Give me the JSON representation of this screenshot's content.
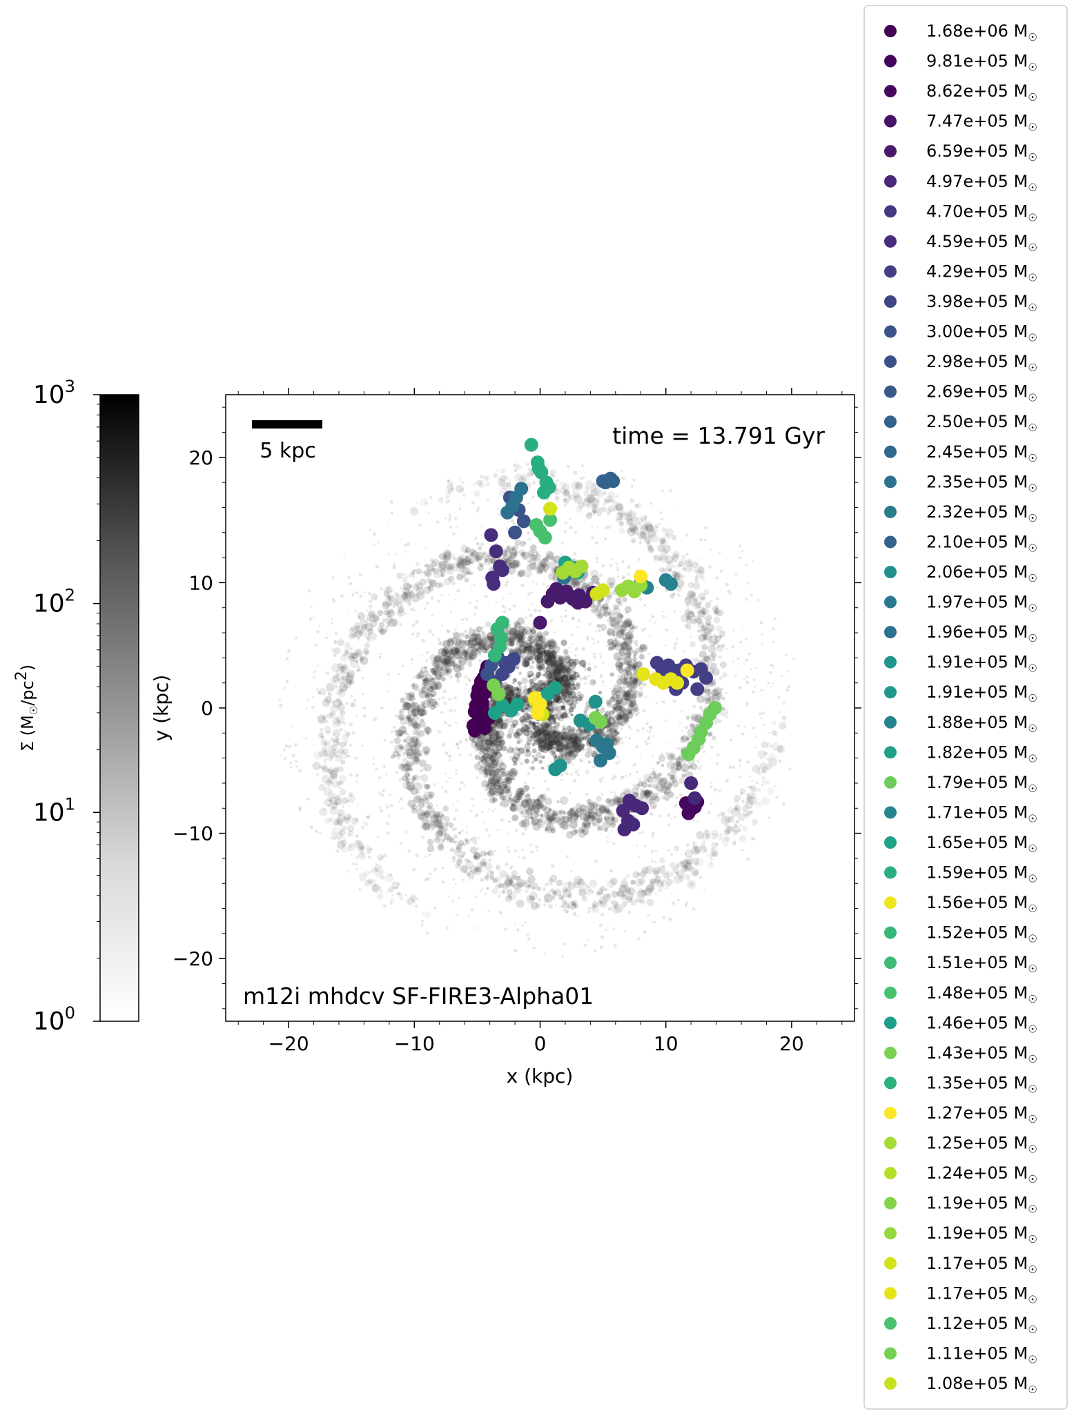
{
  "chart_data": {
    "type": "scatter",
    "title": "",
    "xlabel": "x (kpc)",
    "ylabel": "y (kpc)",
    "xlim": [
      -25,
      25
    ],
    "ylim": [
      -25,
      25
    ],
    "xticks": [
      -20,
      -10,
      0,
      10,
      20
    ],
    "yticks": [
      -20,
      -10,
      0,
      10,
      20
    ],
    "xtick_labels": [
      "−20",
      "−10",
      "0",
      "10",
      "20"
    ],
    "ytick_labels": [
      "−20",
      "−10",
      "0",
      "10",
      "20"
    ],
    "annotations": {
      "time": "time = 13.791 Gyr",
      "run_name": "m12i mhdcv SF-FIRE3-Alpha01",
      "scale_bar": "5 kpc",
      "scale_bar_length_kpc": 5
    },
    "colorbar": {
      "label": "Σ (M☉/pc²)",
      "label_main": "Σ (M",
      "label_sun": "☉",
      "label_tail": "/pc",
      "label_sup": "2",
      "label_close": ")",
      "scale": "log",
      "range": [
        1,
        1000
      ],
      "tick_base": "10",
      "tick_exponents": [
        "0",
        "1",
        "2",
        "3"
      ],
      "colormap": "Greys"
    },
    "legend": {
      "placement": "right, outside axes",
      "unit_main": "M",
      "unit_sub": "☉",
      "entries": [
        {
          "mass": "1.68e+06",
          "color": "#440154"
        },
        {
          "mass": "9.81e+05",
          "color": "#450559"
        },
        {
          "mass": "8.62e+05",
          "color": "#46085c"
        },
        {
          "mass": "7.47e+05",
          "color": "#471365"
        },
        {
          "mass": "6.59e+05",
          "color": "#481a6c"
        },
        {
          "mass": "4.97e+05",
          "color": "#482878"
        },
        {
          "mass": "4.70e+05",
          "color": "#443983"
        },
        {
          "mass": "4.59e+05",
          "color": "#472d7b"
        },
        {
          "mass": "4.29e+05",
          "color": "#433e85"
        },
        {
          "mass": "3.98e+05",
          "color": "#3f4788"
        },
        {
          "mass": "3.00e+05",
          "color": "#3b528b"
        },
        {
          "mass": "2.98e+05",
          "color": "#3b518b"
        },
        {
          "mass": "2.69e+05",
          "color": "#38598c"
        },
        {
          "mass": "2.50e+05",
          "color": "#33638d"
        },
        {
          "mass": "2.45e+05",
          "color": "#31668e"
        },
        {
          "mass": "2.35e+05",
          "color": "#2c728e"
        },
        {
          "mass": "2.32e+05",
          "color": "#297b8e"
        },
        {
          "mass": "2.10e+05",
          "color": "#33638d"
        },
        {
          "mass": "2.06e+05",
          "color": "#21918c"
        },
        {
          "mass": "1.97e+05",
          "color": "#2a788e"
        },
        {
          "mass": "1.96e+05",
          "color": "#2c718e"
        },
        {
          "mass": "1.91e+05",
          "color": "#1f968b"
        },
        {
          "mass": "1.91e+05",
          "color": "#1f998a"
        },
        {
          "mass": "1.88e+05",
          "color": "#26828e"
        },
        {
          "mass": "1.82e+05",
          "color": "#1fa088"
        },
        {
          "mass": "1.79e+05",
          "color": "#6ccd5a"
        },
        {
          "mass": "1.71e+05",
          "color": "#25858e"
        },
        {
          "mass": "1.65e+05",
          "color": "#1fa287"
        },
        {
          "mass": "1.59e+05",
          "color": "#29af7f"
        },
        {
          "mass": "1.56e+05",
          "color": "#f1e51d"
        },
        {
          "mass": "1.52e+05",
          "color": "#35b779"
        },
        {
          "mass": "1.51e+05",
          "color": "#3bbb75"
        },
        {
          "mass": "1.48e+05",
          "color": "#48c16e"
        },
        {
          "mass": "1.46e+05",
          "color": "#1f9e89"
        },
        {
          "mass": "1.43e+05",
          "color": "#7ad151"
        },
        {
          "mass": "1.35e+05",
          "color": "#2db27d"
        },
        {
          "mass": "1.27e+05",
          "color": "#fde725"
        },
        {
          "mass": "1.25e+05",
          "color": "#a5db36"
        },
        {
          "mass": "1.24e+05",
          "color": "#b5de2b"
        },
        {
          "mass": "1.19e+05",
          "color": "#84d44b"
        },
        {
          "mass": "1.19e+05",
          "color": "#95d840"
        },
        {
          "mass": "1.17e+05",
          "color": "#d2e21b"
        },
        {
          "mass": "1.17e+05",
          "color": "#e5e419"
        },
        {
          "mass": "1.12e+05",
          "color": "#4ac16d"
        },
        {
          "mass": "1.11e+05",
          "color": "#75d054"
        },
        {
          "mass": "1.08e+05",
          "color": "#c8e020"
        }
      ]
    },
    "series": [
      {
        "color": "#440154",
        "x": [
          -5.2,
          -5.0,
          -4.8,
          -4.6,
          -4.9,
          -4.4,
          -5.3,
          -4.7,
          -4.5,
          -5.1,
          -4.3,
          -4.8,
          -5.0,
          -4.6,
          -4.2,
          -5.2,
          -4.7,
          -4.4,
          -4.9,
          -4.1
        ],
        "y": [
          -1.8,
          -1.2,
          -0.6,
          0.0,
          0.6,
          1.2,
          -1.4,
          1.8,
          2.4,
          0.2,
          2.9,
          -0.9,
          1.0,
          0.4,
          3.3,
          -0.3,
          2.1,
          -1.6,
          1.5,
          -0.8
        ]
      },
      {
        "color": "#46085c",
        "x": [
          11.6,
          12.0,
          12.3,
          11.8,
          12.5
        ],
        "y": [
          -7.6,
          -8.1,
          -7.9,
          -8.4,
          -7.5
        ]
      },
      {
        "color": "#481a6c",
        "x": [
          1.0,
          1.6,
          2.1,
          2.6,
          3.1,
          3.6,
          4.2,
          0.6,
          1.3,
          2.4,
          3.0,
          0.0
        ],
        "y": [
          9.1,
          8.8,
          9.3,
          8.7,
          9.0,
          8.5,
          9.2,
          8.5,
          9.5,
          8.9,
          8.4,
          6.8
        ]
      },
      {
        "color": "#482878",
        "x": [
          6.6,
          7.1,
          7.6,
          7.0,
          6.7,
          7.4,
          8.1,
          12.0,
          12.3
        ],
        "y": [
          -8.2,
          -7.4,
          -7.8,
          -9.0,
          -9.7,
          -9.3,
          -8.0,
          -6.0,
          -7.2
        ]
      },
      {
        "color": "#472d7b",
        "x": [
          -3.9,
          -3.5,
          -3.2,
          -3.8,
          -3.7,
          -3.0
        ],
        "y": [
          13.8,
          12.5,
          11.3,
          10.4,
          9.9,
          11.0
        ]
      },
      {
        "color": "#433e85",
        "x": [
          9.3,
          9.7,
          10.2,
          10.5,
          11.0,
          11.6,
          12.2,
          12.8,
          13.2,
          10.0,
          11.3,
          12.5,
          10.8
        ],
        "y": [
          3.6,
          3.1,
          3.4,
          2.6,
          3.0,
          3.4,
          2.9,
          3.1,
          2.4,
          2.1,
          2.0,
          1.5,
          1.5
        ]
      },
      {
        "color": "#3f4788",
        "x": [
          -2.1,
          -2.5,
          -3.0,
          -3.6,
          -2.8
        ],
        "y": [
          3.9,
          3.3,
          2.7,
          2.1,
          3.6
        ]
      },
      {
        "color": "#3b528b",
        "x": [
          -2.4,
          -1.7,
          -1.3,
          -2.0,
          -3.4,
          -3.9,
          -4.2
        ],
        "y": [
          16.8,
          15.8,
          14.9,
          14.0,
          4.1,
          3.4,
          2.7
        ]
      },
      {
        "color": "#33638d",
        "x": [
          5.0,
          5.6,
          5.2,
          5.8
        ],
        "y": [
          18.1,
          18.3,
          18.0,
          18.1
        ]
      },
      {
        "color": "#2c728e",
        "x": [
          -1.5,
          -1.9,
          -2.2,
          -2.6,
          1.9
        ],
        "y": [
          17.5,
          16.8,
          16.1,
          15.6,
          10.4
        ]
      },
      {
        "color": "#2a788e",
        "x": [
          4.5,
          5.0,
          5.5,
          4.8,
          5.3
        ],
        "y": [
          -2.6,
          -3.1,
          -3.6,
          -4.2,
          -2.9
        ]
      },
      {
        "color": "#26828e",
        "x": [
          10.0,
          10.4,
          8.0,
          8.5
        ],
        "y": [
          10.2,
          9.9,
          10.0,
          9.6
        ]
      },
      {
        "color": "#21918c",
        "x": [
          3.2,
          3.9,
          4.4,
          1.6,
          1.2
        ],
        "y": [
          -1.0,
          -1.3,
          0.5,
          -4.6,
          -4.9
        ]
      },
      {
        "color": "#1fa088",
        "x": [
          -1.8,
          -2.3,
          -3.0,
          1.2,
          0.6,
          -3.6,
          2.0,
          2.6,
          3.0
        ],
        "y": [
          0.3,
          -0.2,
          0.2,
          1.6,
          1.1,
          -0.4,
          11.6,
          11.2,
          10.8
        ]
      },
      {
        "color": "#29af7f",
        "x": [
          -0.7,
          -0.2,
          0.1,
          0.5,
          0.7,
          0.3,
          -0.1
        ],
        "y": [
          21.0,
          19.6,
          18.8,
          18.0,
          17.6,
          17.2,
          19.1
        ]
      },
      {
        "color": "#35b779",
        "x": [
          -3.4,
          -3.1,
          -3.2,
          -3.6,
          -3.0
        ],
        "y": [
          6.3,
          5.6,
          4.9,
          4.2,
          6.8
        ]
      },
      {
        "color": "#48c16e",
        "x": [
          -0.3,
          0.0,
          0.4,
          0.8
        ],
        "y": [
          14.6,
          14.1,
          13.6,
          15.0
        ]
      },
      {
        "color": "#6ccd5a",
        "x": [
          12.8,
          13.2,
          13.5,
          12.6,
          12.2,
          11.8,
          13.9
        ],
        "y": [
          -1.9,
          -1.2,
          -0.5,
          -2.5,
          -3.2,
          -3.7,
          0.0
        ]
      },
      {
        "color": "#7ad151",
        "x": [
          -3.7,
          -3.3,
          4.4,
          4.8
        ],
        "y": [
          1.8,
          1.1,
          -0.8,
          -1.1
        ]
      },
      {
        "color": "#95d840",
        "x": [
          7.0,
          7.5,
          8.0,
          6.5
        ],
        "y": [
          9.7,
          9.3,
          9.8,
          9.4
        ]
      },
      {
        "color": "#a5db36",
        "x": [
          2.3,
          2.8,
          3.3,
          1.8
        ],
        "y": [
          11.2,
          10.9,
          11.3,
          10.8
        ]
      },
      {
        "color": "#d2e21b",
        "x": [
          -0.4,
          -0.1,
          0.2,
          4.5,
          5.0,
          0.8
        ],
        "y": [
          0.6,
          0.0,
          -0.5,
          9.1,
          9.4,
          15.9
        ]
      },
      {
        "color": "#e5e419",
        "x": [
          8.2,
          9.2,
          9.8,
          10.4,
          10.9
        ],
        "y": [
          2.7,
          2.3,
          2.0,
          2.3,
          2.0
        ]
      },
      {
        "color": "#fde725",
        "x": [
          -0.4,
          0.0,
          -0.2,
          11.7,
          8.0
        ],
        "y": [
          0.8,
          0.3,
          -0.4,
          3.0,
          10.5
        ]
      }
    ],
    "grid": false
  }
}
